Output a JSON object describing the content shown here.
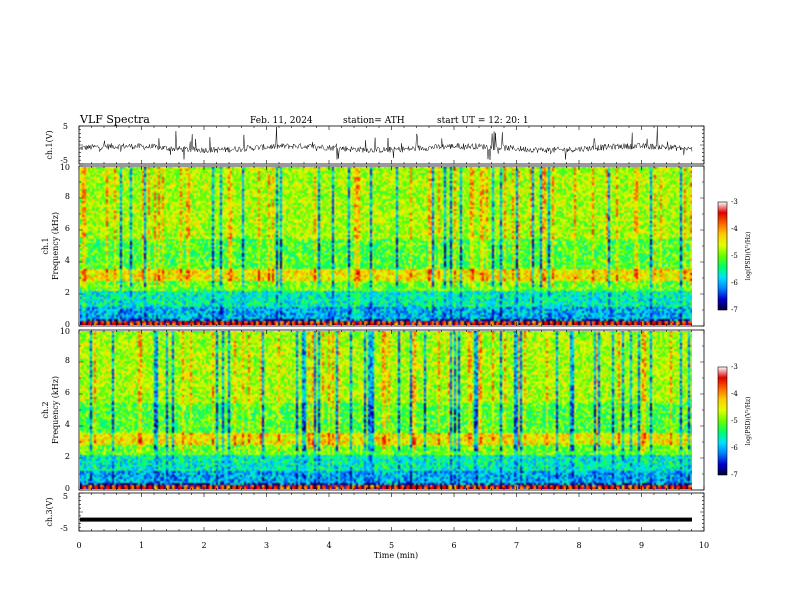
{
  "header": {
    "title": "VLF Spectra",
    "date": "Feb. 11, 2024",
    "station": "station= ATH",
    "start": "start UT =  12: 20: 1"
  },
  "chart_data": [
    {
      "type": "line",
      "panel": "ch1-waveform",
      "ylabel": "ch.1(V)",
      "yticks": [
        "5",
        "-5"
      ],
      "ylim": [
        -5,
        5
      ],
      "xlim": [
        0,
        10
      ]
    },
    {
      "type": "heatmap",
      "panel": "ch1-spectrogram",
      "ylabel_line1": "ch.1",
      "ylabel_line2": "Frequency (kHz)",
      "yticks": [
        "0",
        "2",
        "4",
        "6",
        "8",
        "10"
      ],
      "ylim": [
        0,
        10
      ],
      "xlim": [
        0,
        9.8
      ],
      "colorbar": {
        "label": "log(PSD)(V²/Hz)",
        "ticks": [
          "-3",
          "-4",
          "-5",
          "-6",
          "-7"
        ],
        "range": [
          -7,
          -3
        ]
      }
    },
    {
      "type": "heatmap",
      "panel": "ch2-spectrogram",
      "ylabel_line1": "ch.2",
      "ylabel_line2": "Frequency (kHz)",
      "yticks": [
        "0",
        "2",
        "4",
        "6",
        "8",
        "10"
      ],
      "ylim": [
        0,
        10
      ],
      "xlim": [
        0,
        9.8
      ],
      "colorbar": {
        "label": "log(PSD)(V²/Hz)",
        "ticks": [
          "-3",
          "-4",
          "-5",
          "-6",
          "-7"
        ],
        "range": [
          -7,
          -3
        ]
      }
    },
    {
      "type": "line",
      "panel": "ch3-waveform",
      "ylabel": "ch.3(V)",
      "yticks": [
        "5",
        "-5"
      ],
      "ylim": [
        -5,
        5
      ],
      "xlim": [
        0,
        10
      ],
      "level": -2
    }
  ],
  "xaxis": {
    "label": "Time (min)",
    "ticks": [
      "0",
      "1",
      "2",
      "3",
      "4",
      "5",
      "6",
      "7",
      "8",
      "9",
      "10"
    ]
  },
  "colors": {
    "scale": [
      "#000033",
      "#0000cc",
      "#0080ff",
      "#00e0ff",
      "#00ff66",
      "#66ff00",
      "#e0ff00",
      "#ffcc00",
      "#ff6600",
      "#e00000",
      "#ffffff"
    ]
  }
}
